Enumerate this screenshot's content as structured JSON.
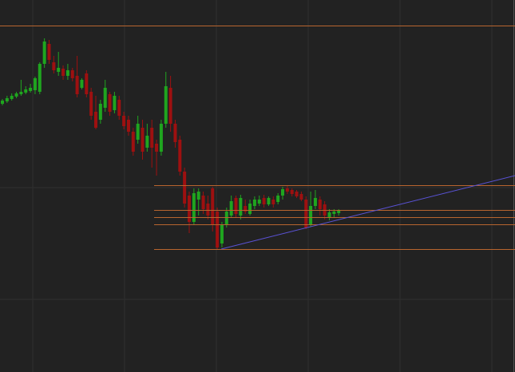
{
  "chart_data": {
    "type": "candlestick",
    "categories": [
      null,
      null,
      null,
      null,
      null,
      null,
      null,
      null,
      null,
      null,
      null,
      null,
      null,
      null,
      null,
      null,
      null,
      null,
      null,
      null,
      null,
      null,
      null,
      null,
      null,
      null,
      null,
      null,
      null,
      null,
      null,
      null,
      null,
      null,
      null,
      null,
      null,
      null,
      null,
      null,
      null,
      null,
      null,
      null,
      null,
      null,
      null,
      null,
      null,
      null,
      null,
      null,
      null,
      null,
      null,
      null,
      null,
      null,
      null,
      null,
      null,
      null,
      null,
      null,
      null,
      null,
      null,
      null,
      null,
      null,
      null,
      null,
      null
    ],
    "open": [
      336,
      339,
      342,
      345,
      348,
      350,
      352,
      353,
      351,
      386,
      411,
      388,
      376,
      380,
      371,
      378,
      371,
      356,
      374,
      351,
      326,
      316,
      331,
      348,
      328,
      341,
      321,
      316,
      301,
      291,
      306,
      281,
      306,
      286,
      276,
      311,
      356,
      311,
      291,
      251,
      221,
      188,
      216,
      221,
      211,
      230,
      201,
      161,
      184,
      196,
      218,
      196,
      208,
      198,
      208,
      211,
      218,
      210,
      216,
      213,
      221,
      230,
      228,
      226,
      223,
      216,
      184,
      208,
      216,
      210,
      193,
      198,
      199
    ],
    "close": [
      340,
      343,
      346,
      349,
      351,
      354,
      356,
      368,
      386,
      414,
      391,
      378,
      381,
      371,
      378,
      368,
      348,
      366,
      348,
      321,
      306,
      336,
      356,
      326,
      346,
      321,
      308,
      301,
      276,
      311,
      276,
      296,
      281,
      276,
      311,
      358,
      311,
      288,
      251,
      211,
      188,
      224,
      226,
      204,
      196,
      184,
      156,
      184,
      201,
      214,
      198,
      218,
      201,
      211,
      216,
      216,
      210,
      218,
      210,
      221,
      229,
      226,
      223,
      220,
      216,
      181,
      208,
      218,
      204,
      196,
      200,
      201,
      202
    ],
    "high": [
      342,
      346,
      349,
      351,
      366,
      358,
      361,
      370,
      388,
      418,
      416,
      396,
      401,
      384,
      386,
      381,
      396,
      368,
      378,
      356,
      346,
      341,
      366,
      351,
      351,
      346,
      326,
      321,
      306,
      321,
      316,
      311,
      316,
      291,
      316,
      376,
      371,
      316,
      296,
      256,
      226,
      230,
      230,
      226,
      221,
      232,
      206,
      188,
      206,
      221,
      221,
      222,
      216,
      216,
      220,
      221,
      222,
      220,
      220,
      224,
      232,
      233,
      230,
      228,
      226,
      220,
      226,
      228,
      220,
      214,
      204,
      204,
      204
    ],
    "low": [
      334,
      337,
      340,
      343,
      346,
      348,
      350,
      348,
      348,
      381,
      386,
      374,
      371,
      366,
      366,
      364,
      344,
      354,
      344,
      316,
      304,
      311,
      326,
      321,
      324,
      316,
      304,
      296,
      271,
      286,
      266,
      276,
      256,
      246,
      271,
      306,
      301,
      281,
      246,
      206,
      174,
      184,
      196,
      198,
      191,
      176,
      154,
      156,
      181,
      194,
      194,
      191,
      198,
      196,
      204,
      208,
      206,
      208,
      206,
      210,
      216,
      223,
      220,
      218,
      214,
      179,
      182,
      204,
      196,
      191,
      190,
      194,
      196
    ],
    "up_color": "#1fa51f",
    "down_color": "#9e1010",
    "ylim": [
      0,
      466
    ],
    "levels": {
      "color": "#b8652f",
      "values": [
        434,
        234,
        203,
        194,
        185,
        154
      ]
    },
    "trendline": {
      "color": "#5a52d6",
      "values": [
        154,
        246
      ]
    }
  }
}
